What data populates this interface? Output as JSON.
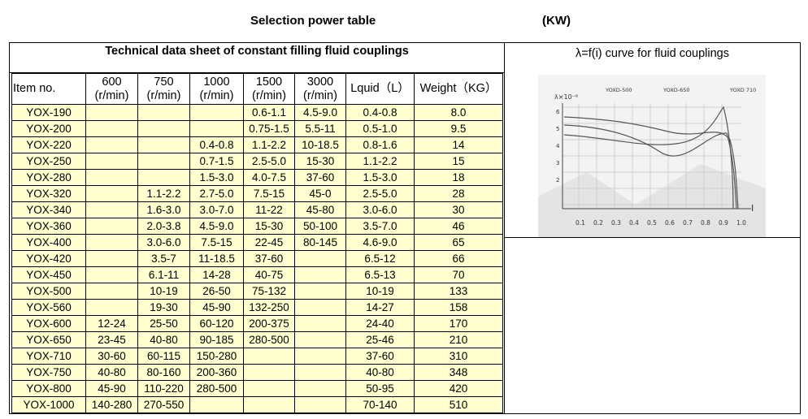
{
  "header": {
    "title": "Selection power table",
    "unit": "(KW)"
  },
  "table": {
    "title": "Technical data sheet of constant filling fluid couplings",
    "columns": [
      {
        "label": "Item no."
      },
      {
        "label": "600",
        "unit": "(r/min)"
      },
      {
        "label": "750",
        "unit": "(r/min)"
      },
      {
        "label": "1000",
        "unit": "(r/min)"
      },
      {
        "label": "1500",
        "unit": "(r/min)"
      },
      {
        "label": "3000",
        "unit": "(r/min)"
      },
      {
        "label": "Lquid（L）"
      },
      {
        "label": "Weight（KG）"
      }
    ],
    "rows": [
      [
        "YOX-190",
        null,
        null,
        null,
        "0.6-1.1",
        "4.5-9.0",
        "0.4-0.8",
        "8.0"
      ],
      [
        "YOX-200",
        null,
        null,
        null,
        "0.75-1.5",
        "5.5-11",
        "0.5-1.0",
        "9.5"
      ],
      [
        "YOX-220",
        null,
        null,
        "0.4-0.8",
        "1.1-2.2",
        "10-18.5",
        "0.8-1.6",
        "14"
      ],
      [
        "YOX-250",
        null,
        null,
        "0.7-1.5",
        "2.5-5.0",
        "15-30",
        "1.1-2.2",
        "15"
      ],
      [
        "YOX-280",
        null,
        null,
        "1.5-3.0",
        "4.0-7.5",
        "37-60",
        "1.5-3.0",
        "18"
      ],
      [
        "YOX-320",
        null,
        "1.1-2.2",
        "2.7-5.0",
        "7.5-15",
        "45-0",
        "2.5-5.0",
        "28"
      ],
      [
        "YOX-340",
        null,
        "1.6-3.0",
        "3.0-7.0",
        "11-22",
        "45-80",
        "3.0-6.0",
        "30"
      ],
      [
        "YOX-360",
        null,
        "2.0-3.8",
        "4.5-9.0",
        "15-30",
        "50-100",
        "3.5-7.0",
        "46"
      ],
      [
        "YOX-400",
        null,
        "3.0-6.0",
        "7.5-15",
        "22-45",
        "80-145",
        "4.6-9.0",
        "65"
      ],
      [
        "YOX-420",
        null,
        "3.5-7",
        "11-18.5",
        "37-60",
        null,
        "6.5-12",
        "66"
      ],
      [
        "YOX-450",
        null,
        "6.1-11",
        "14-28",
        "40-75",
        null,
        "6.5-13",
        "70"
      ],
      [
        "YOX-500",
        null,
        "10-19",
        "26-50",
        "75-132",
        null,
        "10-19",
        "133"
      ],
      [
        "YOX-560",
        null,
        "19-30",
        "45-90",
        "132-250",
        null,
        "14-27",
        "158"
      ],
      [
        "YOX-600",
        "12-24",
        "25-50",
        "60-120",
        "200-375",
        null,
        "24-40",
        "170"
      ],
      [
        "YOX-650",
        "23-45",
        "40-80",
        "90-185",
        "280-500",
        null,
        "25-46",
        "210"
      ],
      [
        "YOX-710",
        "30-60",
        "60-115",
        "150-280",
        null,
        null,
        "37-60",
        "310"
      ],
      [
        "YOX-750",
        "40-80",
        "80-160",
        "200-360",
        null,
        null,
        "40-80",
        "348"
      ],
      [
        "YOX-800",
        "45-90",
        "110-220",
        "280-500",
        null,
        null,
        "50-95",
        "420"
      ],
      [
        "YOX-1000",
        "140-280",
        "270-550",
        null,
        null,
        null,
        "70-140",
        "510"
      ]
    ]
  },
  "figure": {
    "title": "λ=f(i) curve for fluid couplings",
    "y_label": "λ×10⁻⁶",
    "curves": [
      "YOXD-500",
      "YOXD-650",
      "YOXD 710"
    ],
    "yticks": [
      "6",
      "5",
      "4",
      "3",
      "2"
    ],
    "xticks": [
      "0.1",
      "0.2",
      "0.3",
      "0.4",
      "0.5",
      "0.6",
      "0.7",
      "0.8",
      "0.9",
      "1.0"
    ],
    "x_label": "I"
  }
}
